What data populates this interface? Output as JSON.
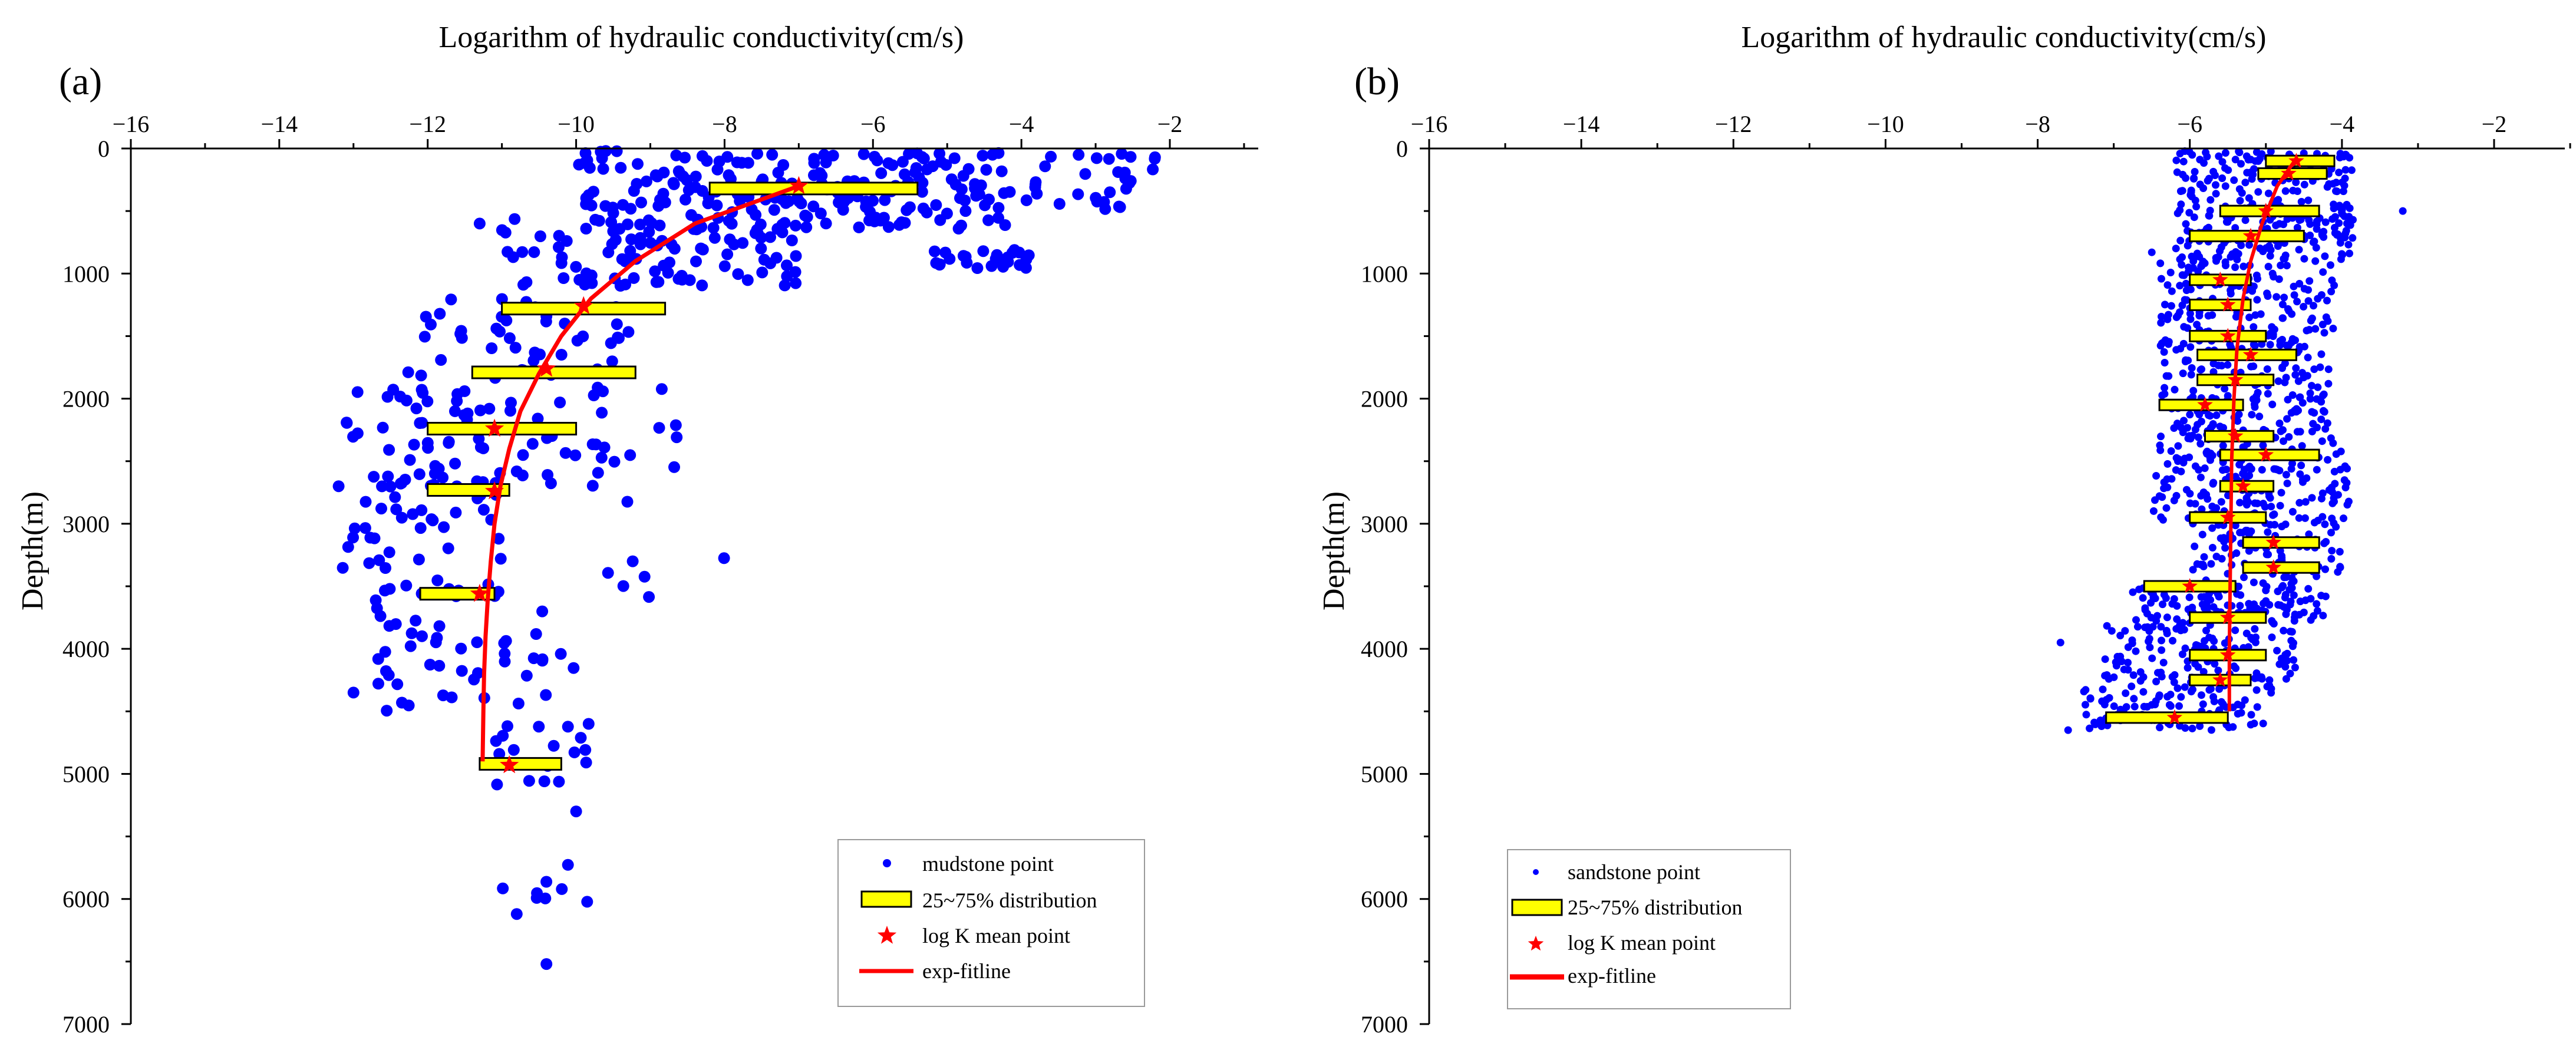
{
  "chart_data": [
    {
      "type": "scatter",
      "panel_label": "(a)",
      "xlabel": "Logarithm of hydraulic conductivity(cm/s)",
      "ylabel": "Depth(m)",
      "xlim": [
        -16,
        -1
      ],
      "ylim": [
        0,
        7000
      ],
      "y_inverted": true,
      "x_axis_position": "top",
      "x_ticks": [
        -16,
        -14,
        -12,
        -10,
        -8,
        -6,
        -4,
        -2
      ],
      "y_ticks": [
        0,
        1000,
        2000,
        3000,
        4000,
        5000,
        6000,
        7000
      ],
      "legend": {
        "position": "bottom-right",
        "entries": {
          "points": "mudstone point",
          "boxes": "25~75% distribution",
          "means": "log K mean point",
          "fit": "exp-fitline"
        }
      },
      "colors": {
        "points": "#0000ff",
        "boxes": "#ffff00",
        "means": "#ff0000",
        "fit": "#ff0000"
      },
      "boxes": [
        {
          "depth": 320,
          "q1": -8.2,
          "q3": -5.4
        },
        {
          "depth": 1280,
          "q1": -11.0,
          "q3": -8.8
        },
        {
          "depth": 1790,
          "q1": -11.4,
          "q3": -9.2
        },
        {
          "depth": 2240,
          "q1": -12.0,
          "q3": -10.0
        },
        {
          "depth": 2730,
          "q1": -12.0,
          "q3": -10.9
        },
        {
          "depth": 3560,
          "q1": -12.1,
          "q3": -11.1
        },
        {
          "depth": 4920,
          "q1": -11.3,
          "q3": -10.2
        }
      ],
      "mean_points": [
        {
          "depth": 300,
          "logK": -7.0
        },
        {
          "depth": 1260,
          "logK": -9.9
        },
        {
          "depth": 1760,
          "logK": -10.4
        },
        {
          "depth": 2240,
          "logK": -11.1
        },
        {
          "depth": 2740,
          "logK": -11.1
        },
        {
          "depth": 3560,
          "logK": -11.3
        },
        {
          "depth": 4930,
          "logK": -10.9
        }
      ],
      "fit_line": [
        {
          "depth": 300,
          "logK": -7.0
        },
        {
          "depth": 600,
          "logK": -8.4
        },
        {
          "depth": 900,
          "logK": -9.2
        },
        {
          "depth": 1200,
          "logK": -9.8
        },
        {
          "depth": 1500,
          "logK": -10.2
        },
        {
          "depth": 1800,
          "logK": -10.5
        },
        {
          "depth": 2100,
          "logK": -10.75
        },
        {
          "depth": 2400,
          "logK": -10.9
        },
        {
          "depth": 2700,
          "logK": -11.02
        },
        {
          "depth": 3000,
          "logK": -11.1
        },
        {
          "depth": 3300,
          "logK": -11.15
        },
        {
          "depth": 3600,
          "logK": -11.19
        },
        {
          "depth": 3900,
          "logK": -11.22
        },
        {
          "depth": 4200,
          "logK": -11.24
        },
        {
          "depth": 4500,
          "logK": -11.25
        },
        {
          "depth": 4900,
          "logK": -11.26
        }
      ],
      "point_clusters": [
        {
          "x_min": -10.0,
          "x_max": -4.2,
          "d_min": 20,
          "d_max": 650,
          "count": 200
        },
        {
          "x_min": -11.0,
          "x_max": -7.0,
          "d_min": 550,
          "d_max": 1100,
          "count": 100
        },
        {
          "x_min": -4.2,
          "x_max": -2.2,
          "d_min": 20,
          "d_max": 500,
          "count": 30
        },
        {
          "x_min": -5.2,
          "x_max": -3.9,
          "d_min": 800,
          "d_max": 970,
          "count": 25
        },
        {
          "x_min": -12.4,
          "x_max": -9.0,
          "d_min": 1100,
          "d_max": 1900,
          "count": 45
        },
        {
          "x_min": -13.1,
          "x_max": -9.5,
          "d_min": 1900,
          "d_max": 2700,
          "count": 70
        },
        {
          "x_min": -13.2,
          "x_max": -11.0,
          "d_min": 2600,
          "d_max": 3600,
          "count": 55
        },
        {
          "x_min": -12.8,
          "x_max": -10.0,
          "d_min": 3600,
          "d_max": 4500,
          "count": 45
        },
        {
          "x_min": -11.2,
          "x_max": -9.8,
          "d_min": 4600,
          "d_max": 5100,
          "count": 18
        },
        {
          "x_min": -11.0,
          "x_max": -9.8,
          "d_min": 5700,
          "d_max": 6150,
          "count": 8
        },
        {
          "x_min": -9.8,
          "x_max": -8.0,
          "d_min": 1900,
          "d_max": 3600,
          "count": 14
        }
      ],
      "point_singles": [
        {
          "logK": -2.2,
          "depth": 70
        },
        {
          "logK": -2.6,
          "depth": 240
        },
        {
          "logK": -10.4,
          "depth": 6520
        },
        {
          "logK": -10.8,
          "depth": 6120
        },
        {
          "logK": -10.0,
          "depth": 5300
        },
        {
          "logK": -11.3,
          "depth": 600
        },
        {
          "logK": -13.2,
          "depth": 2700
        },
        {
          "logK": -13.0,
          "depth": 4350
        }
      ]
    },
    {
      "type": "scatter",
      "panel_label": "(b)",
      "xlabel": "Logarithm of hydraulic conductivity(cm/s)",
      "ylabel": "Depth(m)",
      "xlim": [
        -16,
        -1
      ],
      "ylim": [
        0,
        7000
      ],
      "y_inverted": true,
      "x_axis_position": "top",
      "x_ticks": [
        -16,
        -14,
        -12,
        -10,
        -8,
        -6,
        -4,
        -2
      ],
      "y_ticks": [
        0,
        1000,
        2000,
        3000,
        4000,
        5000,
        6000,
        7000
      ],
      "legend": {
        "position": "bottom-left",
        "entries": {
          "points": "sandstone point",
          "boxes": "25~75% distribution",
          "means": "log K mean point",
          "fit": "exp-fitline"
        }
      },
      "colors": {
        "points": "#0000ff",
        "boxes": "#ffff00",
        "means": "#ff0000",
        "fit": "#ff0000"
      },
      "boxes": [
        {
          "depth": 100,
          "q1": -5.0,
          "q3": -4.1
        },
        {
          "depth": 200,
          "q1": -5.1,
          "q3": -4.2
        },
        {
          "depth": 500,
          "q1": -5.6,
          "q3": -4.3
        },
        {
          "depth": 700,
          "q1": -6.0,
          "q3": -4.5
        },
        {
          "depth": 1050,
          "q1": -6.0,
          "q3": -5.2
        },
        {
          "depth": 1250,
          "q1": -6.0,
          "q3": -5.2
        },
        {
          "depth": 1500,
          "q1": -6.0,
          "q3": -5.0
        },
        {
          "depth": 1650,
          "q1": -5.9,
          "q3": -4.6
        },
        {
          "depth": 1850,
          "q1": -5.9,
          "q3": -4.9
        },
        {
          "depth": 2050,
          "q1": -6.4,
          "q3": -5.3
        },
        {
          "depth": 2300,
          "q1": -5.8,
          "q3": -4.9
        },
        {
          "depth": 2450,
          "q1": -5.6,
          "q3": -4.3
        },
        {
          "depth": 2700,
          "q1": -5.6,
          "q3": -4.9
        },
        {
          "depth": 2950,
          "q1": -6.0,
          "q3": -5.0
        },
        {
          "depth": 3150,
          "q1": -5.3,
          "q3": -4.3
        },
        {
          "depth": 3350,
          "q1": -5.3,
          "q3": -4.3
        },
        {
          "depth": 3500,
          "q1": -6.6,
          "q3": -5.4
        },
        {
          "depth": 3750,
          "q1": -6.0,
          "q3": -5.0
        },
        {
          "depth": 4050,
          "q1": -6.0,
          "q3": -5.0
        },
        {
          "depth": 4250,
          "q1": -6.0,
          "q3": -5.2
        },
        {
          "depth": 4550,
          "q1": -7.1,
          "q3": -5.5
        }
      ],
      "mean_points": [
        {
          "depth": 100,
          "logK": -4.6
        },
        {
          "depth": 200,
          "logK": -4.7
        },
        {
          "depth": 500,
          "logK": -5.0
        },
        {
          "depth": 700,
          "logK": -5.2
        },
        {
          "depth": 1050,
          "logK": -5.6
        },
        {
          "depth": 1250,
          "logK": -5.5
        },
        {
          "depth": 1500,
          "logK": -5.5
        },
        {
          "depth": 1650,
          "logK": -5.2
        },
        {
          "depth": 1850,
          "logK": -5.4
        },
        {
          "depth": 2050,
          "logK": -5.8
        },
        {
          "depth": 2300,
          "logK": -5.4
        },
        {
          "depth": 2450,
          "logK": -5.0
        },
        {
          "depth": 2700,
          "logK": -5.3
        },
        {
          "depth": 2950,
          "logK": -5.5
        },
        {
          "depth": 3150,
          "logK": -4.9
        },
        {
          "depth": 3350,
          "logK": -4.9
        },
        {
          "depth": 3500,
          "logK": -6.0
        },
        {
          "depth": 3750,
          "logK": -5.5
        },
        {
          "depth": 4050,
          "logK": -5.5
        },
        {
          "depth": 4250,
          "logK": -5.6
        },
        {
          "depth": 4550,
          "logK": -6.2
        }
      ],
      "fit_line": [
        {
          "depth": 80,
          "logK": -4.6
        },
        {
          "depth": 300,
          "logK": -4.85
        },
        {
          "depth": 600,
          "logK": -5.05
        },
        {
          "depth": 900,
          "logK": -5.2
        },
        {
          "depth": 1200,
          "logK": -5.3
        },
        {
          "depth": 1600,
          "logK": -5.38
        },
        {
          "depth": 2000,
          "logK": -5.42
        },
        {
          "depth": 2500,
          "logK": -5.45
        },
        {
          "depth": 3000,
          "logK": -5.46
        },
        {
          "depth": 3500,
          "logK": -5.47
        },
        {
          "depth": 4000,
          "logK": -5.48
        },
        {
          "depth": 4500,
          "logK": -5.48
        }
      ],
      "point_clusters": [
        {
          "x_min": -6.2,
          "x_max": -3.8,
          "d_min": 20,
          "d_max": 900,
          "count": 300
        },
        {
          "x_min": -6.4,
          "x_max": -4.1,
          "d_min": 900,
          "d_max": 2400,
          "count": 360
        },
        {
          "x_min": -6.5,
          "x_max": -3.9,
          "d_min": 2400,
          "d_max": 3000,
          "count": 180
        },
        {
          "x_min": -6.0,
          "x_max": -4.0,
          "d_min": 3000,
          "d_max": 3450,
          "count": 90
        },
        {
          "x_min": -6.8,
          "x_max": -4.2,
          "d_min": 3450,
          "d_max": 3800,
          "count": 120
        },
        {
          "x_min": -7.2,
          "x_max": -4.6,
          "d_min": 3800,
          "d_max": 4250,
          "count": 120
        },
        {
          "x_min": -7.4,
          "x_max": -4.9,
          "d_min": 4250,
          "d_max": 4650,
          "count": 110
        }
      ],
      "point_singles": [
        {
          "logK": -3.2,
          "depth": 500
        },
        {
          "logK": -6.5,
          "depth": 830
        },
        {
          "logK": -7.7,
          "depth": 3950
        },
        {
          "logK": -7.6,
          "depth": 4650
        }
      ]
    }
  ]
}
